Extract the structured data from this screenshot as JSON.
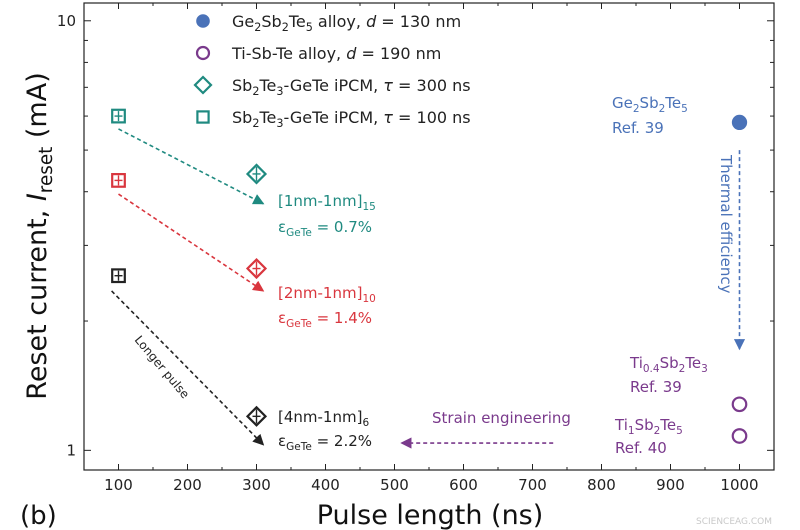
{
  "chart_data": {
    "type": "scatter",
    "panel_label": "(b)",
    "xlabel": "Pulse length (ns)",
    "ylabel": {
      "main": "Reset current, ",
      "italic": "I",
      "sub": "reset",
      "unit": " (mA)"
    },
    "x_scale": "linear",
    "y_scale": "log",
    "xlim": [
      50,
      1050
    ],
    "ylim": [
      0.9,
      11
    ],
    "x_ticks": [
      100,
      200,
      300,
      400,
      500,
      600,
      700,
      800,
      900,
      1000
    ],
    "y_ticks": [
      1,
      10
    ],
    "series": [
      {
        "legend_parts": [
          [
            "Ge",
            "n"
          ],
          [
            "2",
            "sub"
          ],
          [
            "Sb",
            "n"
          ],
          [
            "2",
            "sub"
          ],
          [
            "Te",
            "n"
          ],
          [
            "5",
            "sub"
          ],
          [
            " alloy, ",
            "n"
          ],
          [
            "d",
            "i"
          ],
          [
            " = 130 nm",
            "n"
          ]
        ],
        "marker": "filled-circle",
        "color": "#4a72b8",
        "points": [
          {
            "x": 1000,
            "y": 5.8
          }
        ]
      },
      {
        "legend_parts": [
          [
            "Ti-Sb-Te alloy, ",
            "n"
          ],
          [
            "d",
            "i"
          ],
          [
            " = 190 nm",
            "n"
          ]
        ],
        "marker": "open-circle",
        "color": "#7a3a8c",
        "points": [
          {
            "x": 1000,
            "y": 1.28
          },
          {
            "x": 1000,
            "y": 1.08
          }
        ]
      },
      {
        "legend_parts": [
          [
            "Sb",
            "n"
          ],
          [
            "2",
            "sub"
          ],
          [
            "Te",
            "n"
          ],
          [
            "3",
            "sub"
          ],
          [
            "-GeTe iPCM, ",
            "n"
          ],
          [
            "τ",
            "i"
          ],
          [
            " = 300 ns",
            "n"
          ]
        ],
        "marker": "open-diamond",
        "points": [
          {
            "x": 300,
            "y": 4.4,
            "color": "#1f8a80"
          },
          {
            "x": 300,
            "y": 2.65,
            "color": "#d9363e"
          },
          {
            "x": 300,
            "y": 1.2,
            "color": "#222222"
          }
        ]
      },
      {
        "legend_parts": [
          [
            "Sb",
            "n"
          ],
          [
            "2",
            "sub"
          ],
          [
            "Te",
            "n"
          ],
          [
            "3",
            "sub"
          ],
          [
            "-GeTe iPCM, ",
            "n"
          ],
          [
            "τ",
            "i"
          ],
          [
            " = 100 ns",
            "n"
          ]
        ],
        "marker": "open-square",
        "points": [
          {
            "x": 100,
            "y": 6.0,
            "color": "#1f8a80"
          },
          {
            "x": 100,
            "y": 4.25,
            "color": "#d9363e"
          },
          {
            "x": 100,
            "y": 2.55,
            "color": "#222222"
          }
        ]
      }
    ],
    "annotations": [
      {
        "parts": [
          [
            "[1nm-1nm]",
            "n"
          ],
          [
            "15",
            "sub"
          ]
        ],
        "color": "#1f8a80"
      },
      {
        "parts": [
          [
            "ε",
            "n"
          ],
          [
            "GeTe",
            "sub"
          ],
          [
            " = 0.7%",
            "n"
          ]
        ],
        "color": "#1f8a80"
      },
      {
        "parts": [
          [
            "[2nm-1nm]",
            "n"
          ],
          [
            "10",
            "sub"
          ]
        ],
        "color": "#d9363e"
      },
      {
        "parts": [
          [
            "ε",
            "n"
          ],
          [
            "GeTe",
            "sub"
          ],
          [
            " = 1.4%",
            "n"
          ]
        ],
        "color": "#d9363e"
      },
      {
        "parts": [
          [
            "[4nm-1nm]",
            "n"
          ],
          [
            "6",
            "sub"
          ]
        ],
        "color": "#222222"
      },
      {
        "parts": [
          [
            "ε",
            "n"
          ],
          [
            "GeTe",
            "sub"
          ],
          [
            " = 2.2%",
            "n"
          ]
        ],
        "color": "#222222"
      },
      {
        "parts": [
          [
            "Ge",
            "n"
          ],
          [
            "2",
            "sub"
          ],
          [
            "Sb",
            "n"
          ],
          [
            "2",
            "sub"
          ],
          [
            "Te",
            "n"
          ],
          [
            "5",
            "sub"
          ]
        ],
        "color": "#4a72b8"
      },
      {
        "parts": [
          [
            "Ref. 39",
            "n"
          ]
        ],
        "color": "#4a72b8"
      },
      {
        "parts": [
          [
            "Ti",
            "n"
          ],
          [
            "0.4",
            "sub"
          ],
          [
            "Sb",
            "n"
          ],
          [
            "2",
            "sub"
          ],
          [
            "Te",
            "n"
          ],
          [
            "3",
            "sub"
          ]
        ],
        "color": "#7a3a8c"
      },
      {
        "parts": [
          [
            "Ref. 39",
            "n"
          ]
        ],
        "color": "#7a3a8c"
      },
      {
        "parts": [
          [
            "Ti",
            "n"
          ],
          [
            "1",
            "sub"
          ],
          [
            "Sb",
            "n"
          ],
          [
            "2",
            "sub"
          ],
          [
            "Te",
            "n"
          ],
          [
            "5",
            "sub"
          ]
        ],
        "color": "#7a3a8c"
      },
      {
        "parts": [
          [
            "Ref. 40",
            "n"
          ]
        ],
        "color": "#7a3a8c"
      },
      {
        "parts": [
          [
            "Strain engineering",
            "n"
          ]
        ],
        "color": "#7a3a8c"
      },
      {
        "parts": [
          [
            "Thermal efficiency",
            "n"
          ]
        ],
        "color": "#4a72b8"
      },
      {
        "parts": [
          [
            "Longer pulse",
            "n"
          ]
        ],
        "color": "#222222"
      }
    ],
    "arrows": [
      {
        "from": [
          100,
          5.6
        ],
        "to": [
          310,
          3.75
        ],
        "color": "#1f8a80"
      },
      {
        "from": [
          100,
          3.95
        ],
        "to": [
          310,
          2.35
        ],
        "color": "#d9363e"
      },
      {
        "from": [
          90,
          2.35
        ],
        "to": [
          310,
          1.03
        ],
        "color": "#222222"
      },
      {
        "from": [
          730,
          1.04
        ],
        "to": [
          510,
          1.04
        ],
        "color": "#7a3a8c"
      },
      {
        "from": [
          1000,
          5.0
        ],
        "to": [
          1000,
          1.72
        ],
        "color": "#4a72b8"
      }
    ],
    "watermark": "SCIENCEAG.COM"
  }
}
